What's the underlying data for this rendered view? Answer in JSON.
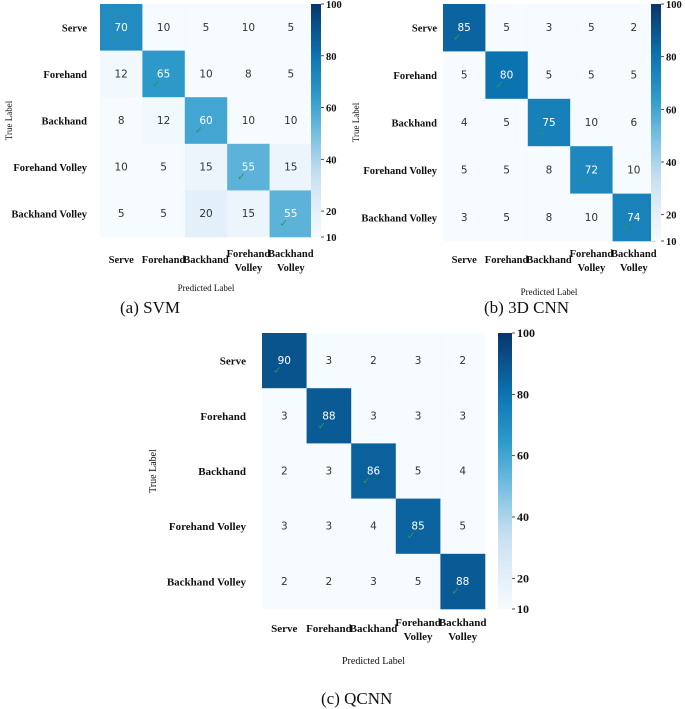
{
  "chart_data": [
    {
      "type": "heatmap",
      "caption": "(a)   SVM",
      "rows": [
        "Serve",
        "Forehand",
        "Backhand",
        "Forehand Volley",
        "Backhand Volley"
      ],
      "columns": [
        [
          "Serve"
        ],
        [
          "Forehand"
        ],
        [
          "Backhand"
        ],
        [
          "Forehand",
          "Volley"
        ],
        [
          "Backhand",
          "Volley"
        ]
      ],
      "values": [
        [
          70,
          10,
          5,
          10,
          5
        ],
        [
          12,
          65,
          10,
          8,
          5
        ],
        [
          8,
          12,
          60,
          10,
          10
        ],
        [
          10,
          5,
          15,
          55,
          15
        ],
        [
          5,
          5,
          20,
          15,
          55
        ]
      ],
      "xlabel": "Predicted Label",
      "ylabel": "True Label",
      "colorbar_ticks": [
        100,
        80,
        60,
        40,
        20,
        10
      ],
      "vmin": 10,
      "vmax": 100,
      "diagonal_mark": "✓"
    },
    {
      "type": "heatmap",
      "caption": "(b) 3D CNN",
      "rows": [
        "Serve",
        "Forehand",
        "Backhand",
        "Forehand Volley",
        "Backhand Volley"
      ],
      "columns": [
        [
          "Serve"
        ],
        [
          "Forehand"
        ],
        [
          "Backhand"
        ],
        [
          "Forehand",
          "Volley"
        ],
        [
          "Backhand",
          "Volley"
        ]
      ],
      "values": [
        [
          85,
          5,
          3,
          5,
          2
        ],
        [
          5,
          80,
          5,
          5,
          5
        ],
        [
          4,
          5,
          75,
          10,
          6
        ],
        [
          5,
          5,
          8,
          72,
          10
        ],
        [
          3,
          5,
          8,
          10,
          74
        ]
      ],
      "xlabel": "Predicted Label",
      "ylabel": "True Label",
      "colorbar_ticks": [
        100,
        80,
        60,
        40,
        20,
        10
      ],
      "vmin": 10,
      "vmax": 100,
      "diagonal_mark": "✓"
    },
    {
      "type": "heatmap",
      "caption": "(c) QCNN",
      "rows": [
        "Serve",
        "Forehand",
        "Backhand",
        "Forehand Volley",
        "Backhand Volley"
      ],
      "columns": [
        [
          "Serve"
        ],
        [
          "Forehand"
        ],
        [
          "Backhand"
        ],
        [
          "Forehand",
          "Volley"
        ],
        [
          "Backhand",
          "Volley"
        ]
      ],
      "values": [
        [
          90,
          3,
          2,
          3,
          2
        ],
        [
          3,
          88,
          3,
          3,
          3
        ],
        [
          2,
          3,
          86,
          5,
          4
        ],
        [
          3,
          3,
          4,
          85,
          5
        ],
        [
          2,
          2,
          3,
          5,
          88
        ]
      ],
      "xlabel": "Predicted Label",
      "ylabel": "True Label",
      "colorbar_ticks": [
        100,
        80,
        60,
        40,
        20,
        10
      ],
      "vmin": 10,
      "vmax": 100,
      "diagonal_mark": "✓"
    }
  ]
}
